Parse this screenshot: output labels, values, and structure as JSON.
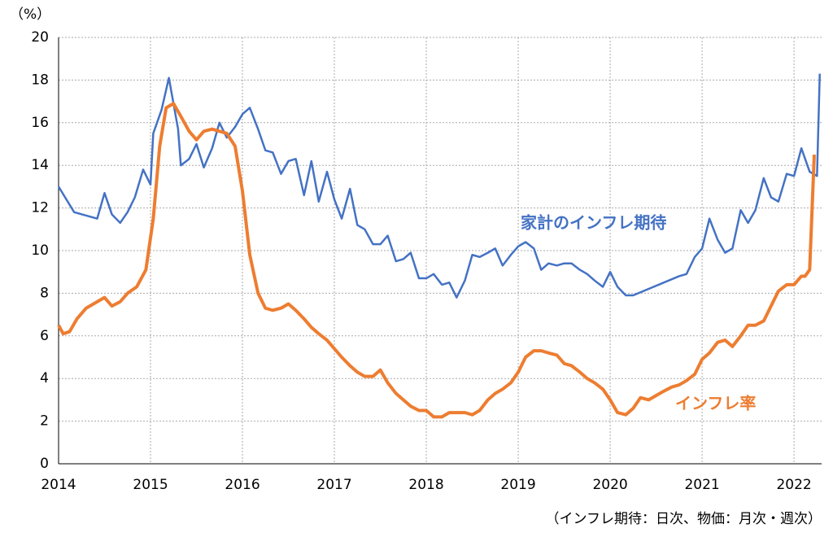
{
  "chart_data": {
    "type": "line",
    "y_unit": "（%）",
    "footnote": "（インフレ期待：日次、物価：月次・週次）",
    "xlim": [
      2014,
      2022.3
    ],
    "xticks": [
      2014,
      2015,
      2016,
      2017,
      2018,
      2019,
      2020,
      2021,
      2022
    ],
    "ylim": [
      0,
      20
    ],
    "yticks": [
      0,
      2,
      4,
      6,
      8,
      10,
      12,
      14,
      16,
      18,
      20
    ],
    "grid": true,
    "series": [
      {
        "name": "家計のインフレ期待",
        "color": "#4472c4",
        "x": [
          2014.0,
          2014.17,
          2014.42,
          2014.5,
          2014.58,
          2014.67,
          2014.75,
          2014.83,
          2014.92,
          2015.0,
          2015.03,
          2015.12,
          2015.2,
          2015.3,
          2015.33,
          2015.42,
          2015.5,
          2015.58,
          2015.67,
          2015.75,
          2015.83,
          2015.92,
          2016.0,
          2016.08,
          2016.17,
          2016.25,
          2016.33,
          2016.42,
          2016.5,
          2016.58,
          2016.67,
          2016.75,
          2016.83,
          2016.92,
          2017.0,
          2017.08,
          2017.17,
          2017.25,
          2017.33,
          2017.42,
          2017.5,
          2017.58,
          2017.67,
          2017.75,
          2017.83,
          2017.92,
          2018.0,
          2018.08,
          2018.17,
          2018.25,
          2018.33,
          2018.42,
          2018.5,
          2018.58,
          2018.67,
          2018.75,
          2018.83,
          2018.92,
          2019.0,
          2019.08,
          2019.17,
          2019.25,
          2019.33,
          2019.42,
          2019.5,
          2019.58,
          2019.67,
          2019.75,
          2019.83,
          2019.92,
          2020.0,
          2020.08,
          2020.17,
          2020.25,
          2020.75,
          2020.83,
          2020.92,
          2021.0,
          2021.08,
          2021.17,
          2021.25,
          2021.33,
          2021.42,
          2021.5,
          2021.58,
          2021.67,
          2021.75,
          2021.83,
          2021.92,
          2022.0,
          2022.08,
          2022.17,
          2022.25,
          2022.28
        ],
        "values": [
          13.0,
          11.8,
          11.5,
          12.7,
          11.7,
          11.3,
          11.8,
          12.5,
          13.8,
          13.1,
          15.5,
          16.6,
          18.1,
          15.7,
          14.0,
          14.3,
          15.0,
          13.9,
          14.8,
          16.0,
          15.3,
          15.8,
          16.4,
          16.7,
          15.7,
          14.7,
          14.6,
          13.6,
          14.2,
          14.3,
          12.6,
          14.2,
          12.3,
          13.7,
          12.4,
          11.5,
          12.9,
          11.2,
          11.0,
          10.3,
          10.3,
          10.7,
          9.5,
          9.6,
          9.9,
          8.7,
          8.7,
          8.9,
          8.4,
          8.5,
          7.8,
          8.6,
          9.8,
          9.7,
          9.9,
          10.1,
          9.3,
          9.8,
          10.2,
          10.4,
          10.1,
          9.1,
          9.4,
          9.3,
          9.4,
          9.4,
          9.1,
          8.9,
          8.6,
          8.3,
          9.0,
          8.3,
          7.9,
          7.9,
          8.8,
          8.9,
          9.7,
          10.1,
          11.5,
          10.5,
          9.9,
          10.1,
          11.9,
          11.3,
          11.9,
          13.4,
          12.5,
          12.3,
          13.6,
          13.5,
          14.8,
          13.7,
          13.5,
          18.3
        ]
      },
      {
        "name": "インフレ率",
        "color": "#ed7d31",
        "x": [
          2014.0,
          2014.05,
          2014.12,
          2014.2,
          2014.3,
          2014.42,
          2014.5,
          2014.58,
          2014.67,
          2014.75,
          2014.85,
          2014.95,
          2015.03,
          2015.1,
          2015.17,
          2015.25,
          2015.33,
          2015.42,
          2015.5,
          2015.58,
          2015.67,
          2015.75,
          2015.83,
          2015.92,
          2016.0,
          2016.08,
          2016.17,
          2016.25,
          2016.33,
          2016.42,
          2016.5,
          2016.58,
          2016.67,
          2016.75,
          2016.83,
          2016.92,
          2017.0,
          2017.08,
          2017.17,
          2017.25,
          2017.33,
          2017.42,
          2017.5,
          2017.58,
          2017.67,
          2017.75,
          2017.83,
          2017.92,
          2018.0,
          2018.08,
          2018.17,
          2018.25,
          2018.33,
          2018.42,
          2018.5,
          2018.58,
          2018.67,
          2018.75,
          2018.83,
          2018.92,
          2019.0,
          2019.08,
          2019.17,
          2019.25,
          2019.33,
          2019.42,
          2019.5,
          2019.58,
          2019.67,
          2019.75,
          2019.83,
          2019.92,
          2020.0,
          2020.08,
          2020.17,
          2020.25,
          2020.33,
          2020.42,
          2020.5,
          2020.58,
          2020.67,
          2020.75,
          2020.83,
          2020.92,
          2021.0,
          2021.08,
          2021.17,
          2021.25,
          2021.33,
          2021.42,
          2021.5,
          2021.58,
          2021.67,
          2021.75,
          2021.83,
          2021.92,
          2022.0,
          2022.08,
          2022.12,
          2022.17,
          2022.22
        ],
        "values": [
          6.5,
          6.1,
          6.2,
          6.8,
          7.3,
          7.6,
          7.8,
          7.4,
          7.6,
          8.0,
          8.3,
          9.1,
          11.5,
          14.9,
          16.7,
          16.9,
          16.3,
          15.6,
          15.2,
          15.6,
          15.7,
          15.6,
          15.5,
          14.9,
          12.8,
          9.8,
          8.0,
          7.3,
          7.2,
          7.3,
          7.5,
          7.2,
          6.8,
          6.4,
          6.1,
          5.8,
          5.4,
          5.0,
          4.6,
          4.3,
          4.1,
          4.1,
          4.4,
          3.8,
          3.3,
          3.0,
          2.7,
          2.5,
          2.5,
          2.2,
          2.2,
          2.4,
          2.4,
          2.4,
          2.3,
          2.5,
          3.0,
          3.3,
          3.5,
          3.8,
          4.3,
          5.0,
          5.3,
          5.3,
          5.2,
          5.1,
          4.7,
          4.6,
          4.3,
          4.0,
          3.8,
          3.5,
          3.0,
          2.4,
          2.3,
          2.6,
          3.1,
          3.0,
          3.2,
          3.4,
          3.6,
          3.7,
          3.9,
          4.2,
          4.9,
          5.2,
          5.7,
          5.8,
          5.5,
          6.0,
          6.5,
          6.5,
          6.7,
          7.4,
          8.1,
          8.4,
          8.4,
          8.8,
          8.8,
          9.1,
          14.5
        ]
      }
    ]
  }
}
